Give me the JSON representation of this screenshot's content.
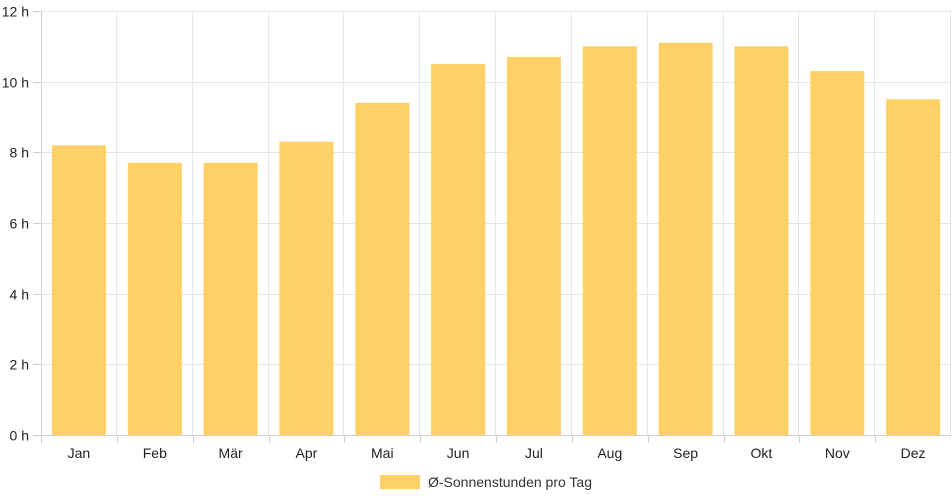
{
  "chart_data": {
    "type": "bar",
    "categories": [
      "Jan",
      "Feb",
      "Mär",
      "Apr",
      "Mai",
      "Jun",
      "Jul",
      "Aug",
      "Sep",
      "Okt",
      "Nov",
      "Dez"
    ],
    "series": [
      {
        "name": "Ø-Sonnenstunden pro Tag",
        "values": [
          8.2,
          7.7,
          7.7,
          8.3,
          9.4,
          10.5,
          10.7,
          11.0,
          11.1,
          11.0,
          10.3,
          9.5
        ],
        "color": "#fed065"
      }
    ],
    "title": "",
    "xlabel": "",
    "ylabel": "",
    "ylim": [
      0,
      12
    ],
    "yticks": [
      0,
      2,
      4,
      6,
      8,
      10,
      12
    ],
    "ytick_suffix": " h",
    "grid": true,
    "legend": "bottom-center"
  },
  "colors": {
    "bar": "#fed065",
    "grid": "#e5e5e5",
    "axis": "#d0d0d0",
    "text": "#222222"
  }
}
